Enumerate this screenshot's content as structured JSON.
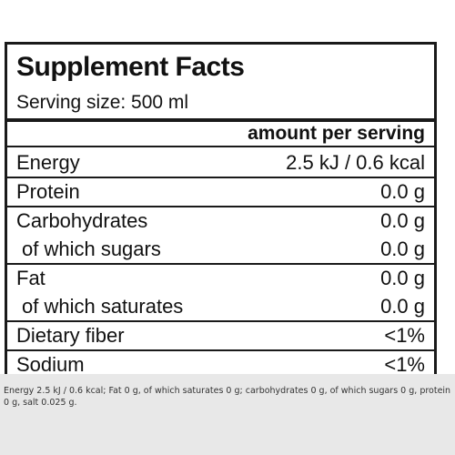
{
  "facts": {
    "title": "Supplement Facts",
    "serving_size": "Serving size: 500 ml",
    "column_header": "amount per serving",
    "rows": [
      {
        "name": "Energy",
        "value": "2.5 kJ / 0.6 kcal"
      },
      {
        "name": "Protein",
        "value": "0.0 g"
      },
      {
        "name": "Carbohydrates",
        "value": "0.0 g"
      },
      {
        "name": "of which sugars",
        "value": "0.0 g"
      },
      {
        "name": "Fat",
        "value": "0.0 g"
      },
      {
        "name": "of which saturates",
        "value": "0.0 g"
      },
      {
        "name": "Dietary fiber",
        "value": "<1%"
      },
      {
        "name": "Sodium",
        "value": "<1%"
      }
    ]
  },
  "footer": {
    "text": "Energy 2.5 kJ / 0.6 kcal; Fat 0 g, of which saturates 0 g; carbohydrates 0 g, of which sugars 0 g, protein 0 g, salt 0.025 g."
  },
  "colors": {
    "border": "#1a1a1a",
    "footer_bg": "#e8e8e8"
  }
}
